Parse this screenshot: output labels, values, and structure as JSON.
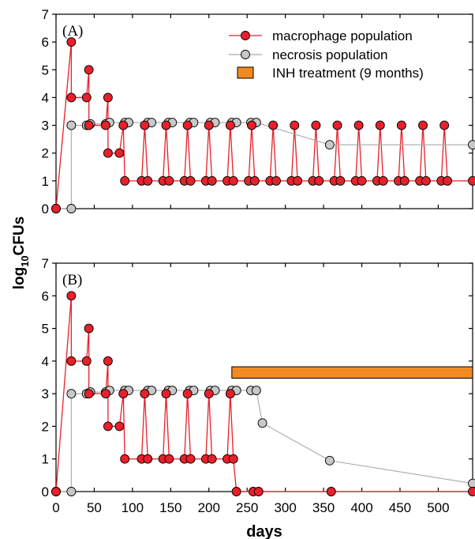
{
  "chart_data": {
    "type": "line",
    "xlabel": "days",
    "ylabel_main": "log",
    "ylabel_sub": "10",
    "ylabel_tail": "CFUs",
    "xlim": [
      0,
      545
    ],
    "ylim": [
      0,
      7
    ],
    "xticks": [
      "0",
      "50",
      "100",
      "150",
      "200",
      "250",
      "300",
      "350",
      "400",
      "450",
      "500"
    ],
    "yticks": [
      "0",
      "1",
      "2",
      "3",
      "4",
      "5",
      "6",
      "7"
    ],
    "colors": {
      "macrophage": "#e8202a",
      "necrosis": "#c8c8c8",
      "inh": "#f28a22"
    },
    "panels": [
      {
        "tag": "(A)",
        "legend": [
          {
            "label": "macrophage population"
          },
          {
            "label": "necrosis population"
          },
          {
            "label": "INH treatment (9 months)"
          }
        ],
        "series": [
          {
            "name": "macrophage population",
            "points": [
              [
                0,
                0
              ],
              [
                20,
                6
              ],
              [
                20,
                4
              ],
              [
                40,
                4
              ],
              [
                43,
                5
              ],
              [
                43,
                3
              ],
              [
                65,
                3
              ],
              [
                68,
                4
              ],
              [
                68,
                2
              ],
              [
                83,
                2
              ],
              [
                88,
                3
              ],
              [
                90,
                1
              ],
              [
                112,
                1
              ],
              [
                116,
                3
              ],
              [
                120,
                1
              ],
              [
                140,
                1
              ],
              [
                144,
                3
              ],
              [
                148,
                1
              ],
              [
                168,
                1
              ],
              [
                172,
                3
              ],
              [
                176,
                1
              ],
              [
                196,
                1
              ],
              [
                200,
                3
              ],
              [
                204,
                1
              ],
              [
                224,
                1
              ],
              [
                228,
                3
              ],
              [
                232,
                1
              ],
              [
                252,
                1
              ],
              [
                256,
                3
              ],
              [
                260,
                1
              ],
              [
                280,
                1
              ],
              [
                284,
                3
              ],
              [
                288,
                1
              ],
              [
                308,
                1
              ],
              [
                312,
                3
              ],
              [
                316,
                1
              ],
              [
                336,
                1
              ],
              [
                340,
                3
              ],
              [
                344,
                1
              ],
              [
                364,
                1
              ],
              [
                368,
                3
              ],
              [
                372,
                1
              ],
              [
                392,
                1
              ],
              [
                396,
                3
              ],
              [
                400,
                1
              ],
              [
                420,
                1
              ],
              [
                424,
                3
              ],
              [
                428,
                1
              ],
              [
                448,
                1
              ],
              [
                452,
                3
              ],
              [
                456,
                1
              ],
              [
                476,
                1
              ],
              [
                480,
                3
              ],
              [
                484,
                1
              ],
              [
                504,
                1
              ],
              [
                508,
                3
              ],
              [
                512,
                1
              ],
              [
                545,
                1
              ]
            ]
          },
          {
            "name": "necrosis population",
            "points": [
              [
                0,
                0
              ],
              [
                20,
                0
              ],
              [
                20,
                3
              ],
              [
                40,
                3
              ],
              [
                45,
                3.05
              ],
              [
                65,
                3.05
              ],
              [
                70,
                3.1
              ],
              [
                90,
                3.1
              ],
              [
                95,
                3.1
              ],
              [
                120,
                3.1
              ],
              [
                125,
                3.1
              ],
              [
                147,
                3.1
              ],
              [
                152,
                3.1
              ],
              [
                175,
                3.1
              ],
              [
                180,
                3.1
              ],
              [
                202,
                3.1
              ],
              [
                208,
                3.1
              ],
              [
                230,
                3.1
              ],
              [
                236,
                3.1
              ],
              [
                255,
                3.1
              ],
              [
                262,
                3.1
              ],
              [
                358,
                2.3
              ],
              [
                545,
                2.3
              ]
            ]
          }
        ]
      },
      {
        "tag": "(B)",
        "inh": {
          "start": 230,
          "end": 545,
          "y": 3.65,
          "height": 0.35
        },
        "series": [
          {
            "name": "macrophage population",
            "points": [
              [
                0,
                0
              ],
              [
                20,
                6
              ],
              [
                20,
                4
              ],
              [
                40,
                4
              ],
              [
                43,
                5
              ],
              [
                43,
                3
              ],
              [
                65,
                3
              ],
              [
                68,
                4
              ],
              [
                68,
                2
              ],
              [
                83,
                2
              ],
              [
                88,
                3
              ],
              [
                90,
                1
              ],
              [
                112,
                1
              ],
              [
                116,
                3
              ],
              [
                120,
                1
              ],
              [
                140,
                1
              ],
              [
                144,
                3
              ],
              [
                148,
                1
              ],
              [
                168,
                1
              ],
              [
                172,
                3
              ],
              [
                176,
                1
              ],
              [
                196,
                1
              ],
              [
                200,
                3
              ],
              [
                204,
                1
              ],
              [
                224,
                1
              ],
              [
                228,
                3
              ],
              [
                232,
                1
              ],
              [
                236,
                0
              ],
              [
                258,
                0
              ],
              [
                265,
                0
              ],
              [
                360,
                0
              ],
              [
                545,
                0
              ]
            ]
          },
          {
            "name": "necrosis population",
            "points": [
              [
                0,
                0
              ],
              [
                20,
                0
              ],
              [
                20,
                3
              ],
              [
                40,
                3
              ],
              [
                45,
                3.05
              ],
              [
                65,
                3.05
              ],
              [
                70,
                3.1
              ],
              [
                90,
                3.1
              ],
              [
                95,
                3.1
              ],
              [
                120,
                3.1
              ],
              [
                125,
                3.1
              ],
              [
                147,
                3.1
              ],
              [
                152,
                3.1
              ],
              [
                175,
                3.1
              ],
              [
                180,
                3.1
              ],
              [
                202,
                3.1
              ],
              [
                208,
                3.1
              ],
              [
                230,
                3.1
              ],
              [
                236,
                3.1
              ],
              [
                255,
                3.1
              ],
              [
                262,
                3.1
              ],
              [
                270,
                2.1
              ],
              [
                358,
                0.95
              ],
              [
                545,
                0.25
              ]
            ]
          }
        ]
      }
    ]
  }
}
